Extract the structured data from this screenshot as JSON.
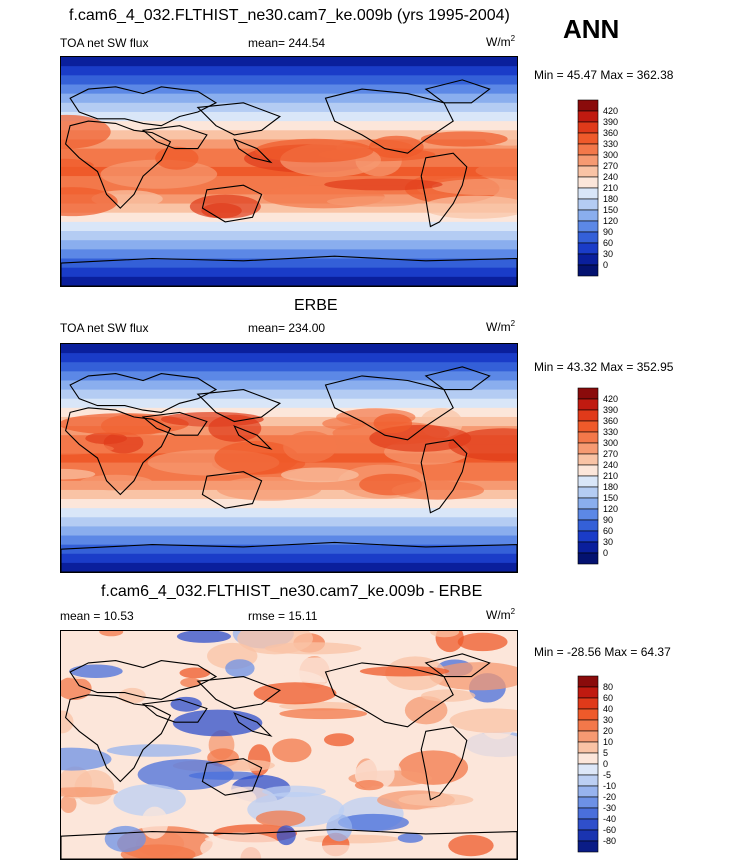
{
  "header": {
    "season": "ANN"
  },
  "panels": [
    {
      "title": "f.cam6_4_032.FLTHIST_ne30.cam7_ke.009b (yrs 1995-2004)",
      "left_label": "TOA net SW flux",
      "center_label": "mean= 244.54",
      "units_base": "W/m",
      "units_exp": "2",
      "minmax": "Min =  45.47 Max = 362.38",
      "colorbar_labels": [
        "420",
        "390",
        "360",
        "330",
        "300",
        "270",
        "240",
        "210",
        "180",
        "150",
        "120",
        "90",
        "60",
        "30",
        "0"
      ]
    },
    {
      "title": "ERBE",
      "left_label": "TOA net SW flux",
      "center_label": "mean= 234.00",
      "units_base": "W/m",
      "units_exp": "2",
      "minmax": "Min =  43.32 Max = 352.95",
      "colorbar_labels": [
        "420",
        "390",
        "360",
        "330",
        "300",
        "270",
        "240",
        "210",
        "180",
        "150",
        "120",
        "90",
        "60",
        "30",
        "0"
      ]
    },
    {
      "title": "f.cam6_4_032.FLTHIST_ne30.cam7_ke.009b - ERBE",
      "left_label": "mean =  10.53",
      "center_label": "rmse =  15.11",
      "units_base": "W/m",
      "units_exp": "2",
      "minmax": "Min = -28.56 Max =  64.37",
      "colorbar_labels": [
        "80",
        "60",
        "40",
        "30",
        "20",
        "10",
        "5",
        "0",
        "-5",
        "-10",
        "-20",
        "-30",
        "-40",
        "-60",
        "-80"
      ]
    }
  ],
  "colors": {
    "abs_scale": [
      "#8a0b0b",
      "#c01a10",
      "#e03a1a",
      "#ef5a2a",
      "#f3784a",
      "#f69a72",
      "#f9c3a5",
      "#fce6da",
      "#d9e6f8",
      "#b4ccf3",
      "#8aaeee",
      "#5c88e6",
      "#3460d8",
      "#1a3cc8",
      "#0a1f9c",
      "#041270"
    ],
    "diff_scale": [
      "#8a0b0b",
      "#c01a10",
      "#e03a1a",
      "#ef5a2a",
      "#f3784a",
      "#f69a72",
      "#f9c3a5",
      "#fce6da",
      "#dde7f8",
      "#bccff3",
      "#97b3ee",
      "#6d91e6",
      "#4a6fdb",
      "#2f4fcb",
      "#1a34b0",
      "#0a1c86"
    ],
    "continent_stroke": "#000000"
  }
}
